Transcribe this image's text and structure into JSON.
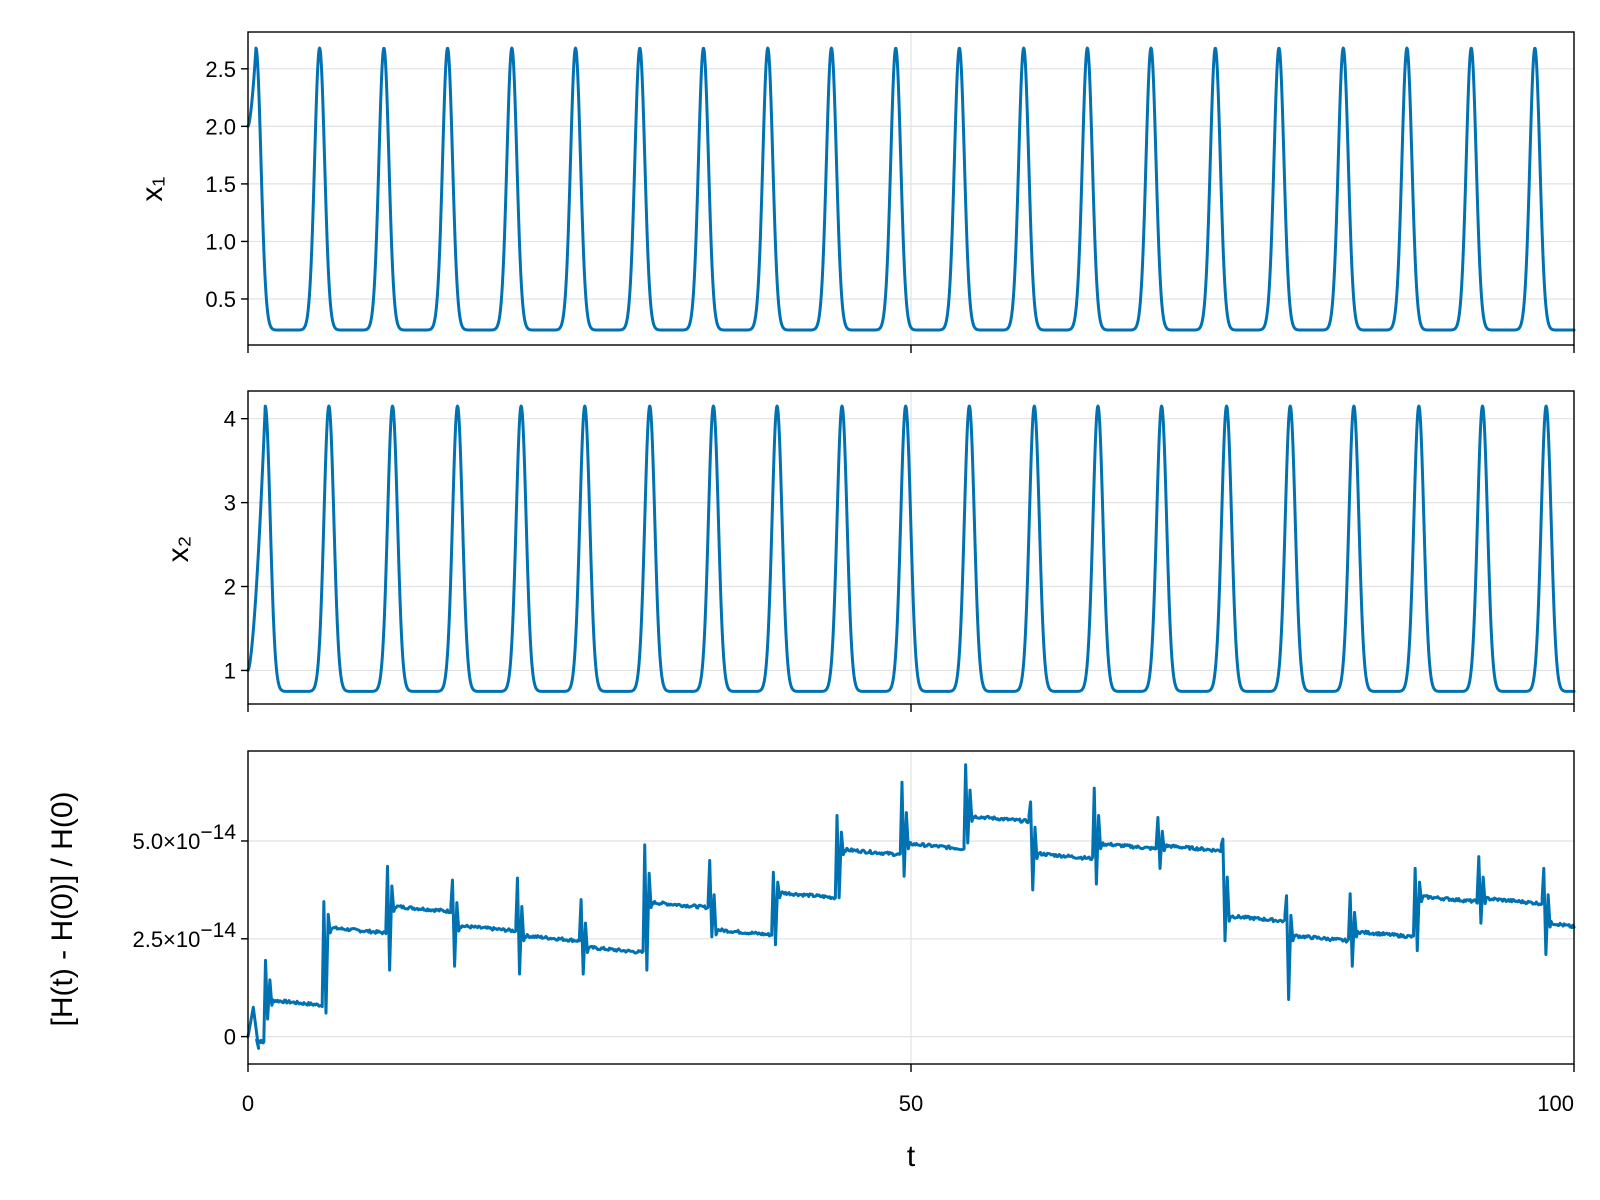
{
  "chart_data": [
    {
      "type": "line",
      "panel": "top",
      "ylabel": "x₁",
      "xlim": [
        0,
        100
      ],
      "ylim": [
        0.1,
        2.82
      ],
      "xticks": [
        0,
        50,
        100
      ],
      "yticks": [
        {
          "value": 0.5,
          "label": "0.5"
        },
        {
          "value": 1.0,
          "label": "1.0"
        },
        {
          "value": 1.5,
          "label": "1.5"
        },
        {
          "value": 2.0,
          "label": "2.0"
        },
        {
          "value": 2.5,
          "label": "2.5"
        }
      ],
      "grid": true,
      "series": [
        {
          "color": "#0072b2",
          "period": 4.82,
          "peak_times": [
            0.6,
            5.4,
            10.25,
            15.05,
            19.9,
            24.7,
            29.55,
            34.35,
            39.2,
            44.0,
            48.85,
            53.65,
            58.5,
            63.3,
            68.1,
            72.95,
            77.75,
            82.6,
            87.4,
            92.25,
            97.05
          ],
          "max": 2.68,
          "min": 0.23,
          "x0": 0,
          "y0": 2.0,
          "x_end": 100,
          "y_end": 0.36
        }
      ]
    },
    {
      "type": "line",
      "panel": "middle",
      "ylabel": "x₂",
      "xlim": [
        0,
        100
      ],
      "ylim": [
        0.6,
        4.33
      ],
      "xticks": [
        0,
        50,
        100
      ],
      "yticks": [
        {
          "value": 1,
          "label": "1"
        },
        {
          "value": 2,
          "label": "2"
        },
        {
          "value": 3,
          "label": "3"
        },
        {
          "value": 4,
          "label": "4"
        }
      ],
      "grid": true,
      "series": [
        {
          "color": "#0072b2",
          "period": 4.82,
          "peak_times": [
            1.3,
            6.1,
            10.9,
            15.8,
            20.6,
            25.4,
            30.3,
            35.1,
            39.9,
            44.8,
            49.6,
            54.4,
            59.3,
            64.1,
            68.9,
            73.8,
            78.6,
            83.4,
            88.3,
            93.1,
            97.9
          ],
          "max": 4.15,
          "min": 0.75,
          "x0": 0,
          "y0": 1.0,
          "x_end": 100,
          "y_end": 1.1
        }
      ]
    },
    {
      "type": "line",
      "panel": "bottom",
      "ylabel": "[H(t) - H(0)] / H(0)",
      "xlabel": "t",
      "xlim": [
        0,
        100
      ],
      "ylim": [
        -0.7,
        7.3
      ],
      "y_scale_note": "values in units of 1e-14",
      "xticks": [
        0,
        50,
        100
      ],
      "yticks": [
        {
          "value": 0,
          "label": "0",
          "exp": ""
        },
        {
          "value": 2.5,
          "label": "2.5×10",
          "exp": "−14"
        },
        {
          "value": 5.0,
          "label": "5.0×10",
          "exp": "−14"
        }
      ],
      "grid": true,
      "series": [
        {
          "color": "#0072b2",
          "step_times": [
            0,
            1.2,
            5.6,
            10.4,
            15.3,
            20.2,
            25.0,
            29.8,
            34.7,
            39.5,
            44.3,
            49.2,
            54.0,
            58.9,
            63.7,
            68.5,
            73.4,
            78.2,
            83.0,
            87.9,
            92.7,
            97.6,
            100
          ],
          "levels": [
            0.0,
            0.95,
            2.8,
            3.35,
            2.85,
            2.6,
            2.3,
            3.45,
            2.75,
            3.7,
            4.8,
            4.95,
            5.65,
            4.7,
            4.95,
            4.9,
            3.1,
            2.6,
            2.7,
            3.6,
            3.55,
            2.95
          ],
          "spike_up": [
            0.75,
            1.95,
            3.45,
            4.35,
            4.0,
            4.05,
            3.5,
            4.9,
            4.5,
            4.2,
            5.65,
            6.5,
            6.95,
            6.0,
            6.35,
            5.6,
            5.05,
            3.6,
            3.65,
            4.3,
            4.6,
            4.3
          ],
          "spike_down": [
            -0.3,
            0.45,
            0.6,
            1.7,
            1.8,
            1.6,
            1.6,
            1.7,
            2.55,
            2.35,
            3.55,
            4.1,
            4.95,
            3.75,
            3.9,
            4.3,
            2.45,
            0.95,
            1.8,
            2.2,
            2.9,
            2.1
          ]
        }
      ]
    }
  ],
  "x_tick_labels": [
    "0",
    "50",
    "100"
  ],
  "panels": {
    "top_ylabel": "x₁",
    "middle_ylabel": "x₂",
    "bottom_ylabel": "[H(t) - H(0)] / H(0)",
    "xlabel": "t"
  }
}
